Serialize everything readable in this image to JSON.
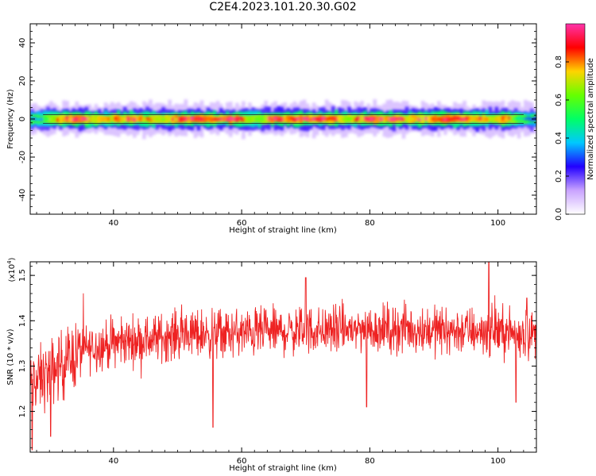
{
  "title": "C2E4.2023.101.20.30.G02",
  "colors": {
    "snr_line": "#ee2222",
    "colormap": [
      "#ffffff",
      "#c9a3ff",
      "#2200ff",
      "#00c8ff",
      "#00ff66",
      "#66ff00",
      "#ffd400",
      "#ff0000",
      "#ff33aa"
    ]
  },
  "colorbar": {
    "label": "Normalized spectral amplitude",
    "ticks": [
      "0.0",
      "0.2",
      "0.4",
      "0.6",
      "0.8"
    ]
  },
  "chart_data": [
    {
      "type": "heatmap",
      "name": "spectrogram",
      "xlabel": "Height of straight line (km)",
      "ylabel": "Frequency (Hz)",
      "xlim": [
        27,
        106
      ],
      "ylim": [
        -50,
        50
      ],
      "xticks": [
        40,
        60,
        80,
        100
      ],
      "yticks": [
        -40,
        -20,
        0,
        20,
        40
      ],
      "colorbar_range": [
        0,
        1
      ],
      "band_center_hz": 0,
      "band_halfwidth_hz": 2.5,
      "description_points": {
        "x": [
          28,
          32,
          35,
          38,
          41,
          44,
          47,
          50,
          53,
          56,
          59,
          62,
          65,
          68,
          71,
          74,
          77,
          80,
          83,
          86,
          89,
          92,
          95,
          98,
          101,
          104
        ],
        "peak_amplitude": [
          0.35,
          0.9,
          0.95,
          0.7,
          0.85,
          0.8,
          0.7,
          0.9,
          0.95,
          0.9,
          0.95,
          0.6,
          0.95,
          0.9,
          0.85,
          0.9,
          0.7,
          0.95,
          0.95,
          0.8,
          0.9,
          0.95,
          0.85,
          0.75,
          0.85,
          0.3
        ]
      }
    },
    {
      "type": "line",
      "name": "snr",
      "xlabel": "Height of straight line (km)",
      "ylabel": "SNR (10 * v/v)",
      "exponent_label": "(x10",
      "exponent_power": "4",
      "exponent_close": ")",
      "xlim": [
        27,
        106
      ],
      "ylim": [
        11100,
        15300
      ],
      "xticks": [
        40,
        60,
        80,
        100
      ],
      "ytick_values": [
        12000,
        13000,
        14000,
        15000
      ],
      "ytick_labels": [
        "1.2",
        "1.3",
        "1.4",
        "1.5"
      ],
      "trend_x": [
        27,
        29,
        31,
        33,
        35,
        38,
        42,
        46,
        50,
        55,
        60,
        65,
        70,
        75,
        80,
        85,
        90,
        95,
        100,
        103,
        106
      ],
      "trend_y": [
        12550,
        12750,
        12950,
        13150,
        13350,
        13450,
        13550,
        13600,
        13700,
        13720,
        13720,
        13760,
        13780,
        13800,
        13830,
        13820,
        13800,
        13780,
        13780,
        13730,
        13700
      ],
      "noise_amplitude": 260,
      "spikes": [
        {
          "x": 27.3,
          "y": 11150
        },
        {
          "x": 30.2,
          "y": 11450
        },
        {
          "x": 55.5,
          "y": 11650
        },
        {
          "x": 70.0,
          "y": 14950
        },
        {
          "x": 79.5,
          "y": 12100
        },
        {
          "x": 98.6,
          "y": 15350
        },
        {
          "x": 102.8,
          "y": 12200
        },
        {
          "x": 104.5,
          "y": 14500
        }
      ]
    }
  ]
}
